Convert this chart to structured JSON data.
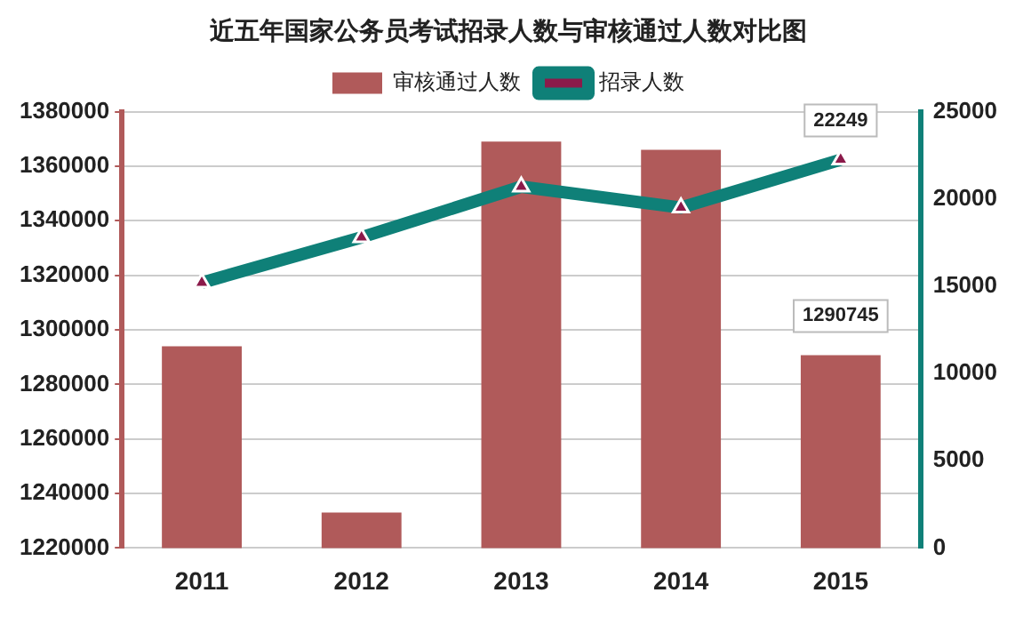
{
  "chart_data": {
    "type": "bar",
    "title": "近五年国家公务员考试招录人数与审核通过人数对比图",
    "categories": [
      "2011",
      "2012",
      "2013",
      "2014",
      "2015"
    ],
    "series": [
      {
        "name": "审核通过人数",
        "color": "#b05a5a",
        "values": [
          1294000,
          1233000,
          1369000,
          1366000,
          1290745
        ],
        "value_labels": [
          null,
          null,
          null,
          null,
          "1290745"
        ]
      },
      {
        "name": "招录人数",
        "type": "line",
        "axis": "y2",
        "color": "#0f8078",
        "marker": "triangle",
        "values": [
          15200,
          17800,
          20700,
          19500,
          22249
        ],
        "value_labels": [
          null,
          null,
          null,
          null,
          "22249"
        ]
      }
    ],
    "ylim": [
      1220000,
      1380000
    ],
    "yticks": [
      1220000,
      1240000,
      1260000,
      1280000,
      1300000,
      1320000,
      1340000,
      1360000,
      1380000
    ],
    "y2lim": [
      0,
      25000
    ],
    "y2ticks": [
      0,
      5000,
      10000,
      15000,
      20000,
      25000
    ],
    "grid": "y",
    "legend": "top"
  }
}
